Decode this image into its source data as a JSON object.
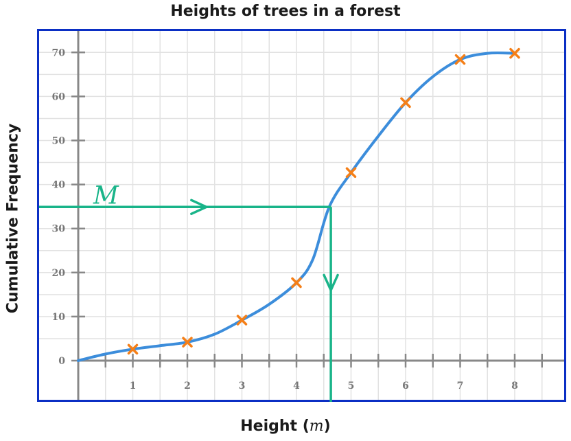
{
  "chart_data": {
    "type": "line",
    "title": "Heights of trees in a forest",
    "xlabel_text": "Height (",
    "xlabel_unit": "m",
    "xlabel_close": ")",
    "ylabel": "Cumulative Frequency",
    "xlim": [
      0,
      8.6
    ],
    "ylim": [
      -2,
      72
    ],
    "x_ticks": [
      1,
      2,
      3,
      4,
      5,
      6,
      7,
      8
    ],
    "y_ticks": [
      0,
      10,
      20,
      30,
      40,
      50,
      60,
      70
    ],
    "grid": true,
    "points": [
      {
        "x": 1,
        "y": 2.6
      },
      {
        "x": 2,
        "y": 4.2
      },
      {
        "x": 3,
        "y": 9.2
      },
      {
        "x": 4,
        "y": 17.7
      },
      {
        "x": 5,
        "y": 42.7
      },
      {
        "x": 6,
        "y": 58.6
      },
      {
        "x": 7,
        "y": 68.4
      },
      {
        "x": 8,
        "y": 69.8
      }
    ],
    "curve": [
      [
        0,
        0
      ],
      [
        0.5,
        1.5
      ],
      [
        1,
        2.6
      ],
      [
        1.5,
        3.4
      ],
      [
        2,
        4.2
      ],
      [
        2.5,
        6.0
      ],
      [
        3,
        9.2
      ],
      [
        3.5,
        12.8
      ],
      [
        4,
        17.7
      ],
      [
        4.3,
        23
      ],
      [
        4.6,
        34.9
      ],
      [
        5,
        42.7
      ],
      [
        5.5,
        51.0
      ],
      [
        6,
        58.6
      ],
      [
        6.5,
        64.5
      ],
      [
        7,
        68.4
      ],
      [
        7.5,
        69.8
      ],
      [
        8,
        69.8
      ]
    ],
    "median": {
      "label": "M",
      "y": 34.9,
      "x": 4.63
    },
    "colors": {
      "curve": "#3c8ddb",
      "marker": "#f57f17",
      "median_line": "#19b489",
      "frame": "#0b2fc4",
      "grid": "#e2e2e2",
      "axis": "#888888"
    }
  }
}
